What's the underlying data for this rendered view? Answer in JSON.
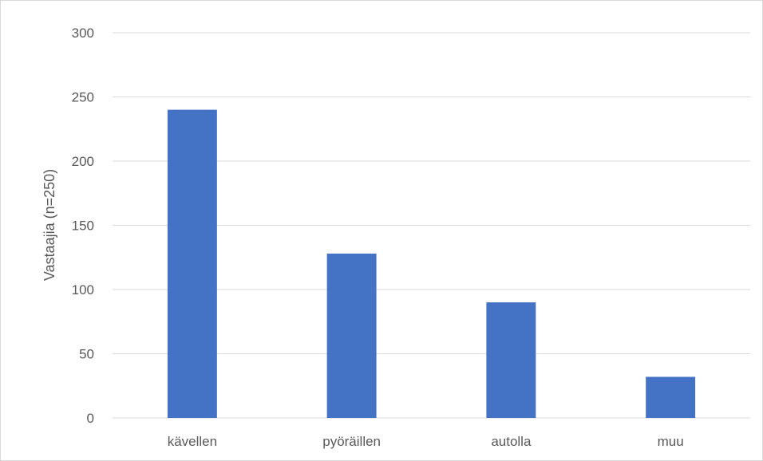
{
  "chart_data": {
    "type": "bar",
    "title": "",
    "xlabel": "",
    "ylabel": "Vastaajia (n=250)",
    "categories": [
      "kävellen",
      "pyöräillen",
      "autolla",
      "muu"
    ],
    "values": [
      240,
      128,
      90,
      32
    ],
    "ylim": [
      0,
      300
    ],
    "yticks": [
      0,
      50,
      100,
      150,
      200,
      250,
      300
    ],
    "grid": true,
    "legend": "none",
    "bar_color": "#4472C4",
    "grid_color": "#d9d9d9"
  }
}
